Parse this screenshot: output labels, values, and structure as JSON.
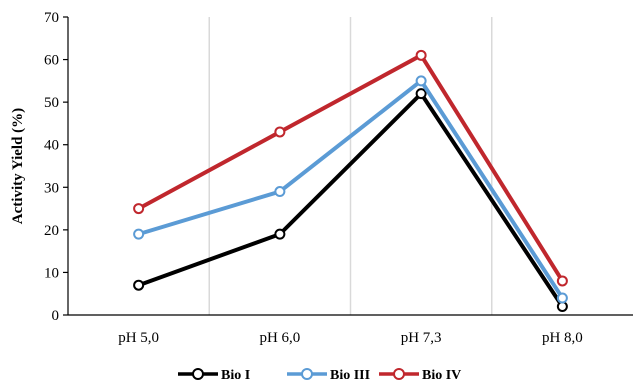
{
  "chart_data": {
    "type": "line",
    "categories": [
      "pH 5,0",
      "pH 6,0",
      "pH 7,3",
      "pH 8,0"
    ],
    "series": [
      {
        "name": "Bio I",
        "values": [
          7,
          19,
          52,
          2
        ],
        "color": "#000000"
      },
      {
        "name": "Bio III",
        "values": [
          19,
          29,
          55,
          4
        ],
        "color": "#5b9bd5"
      },
      {
        "name": "Bio IV",
        "values": [
          25,
          43,
          61,
          8
        ],
        "color": "#c0272d"
      }
    ],
    "title": "",
    "xlabel": "",
    "ylabel": "Activity Yield (%)",
    "ylim": [
      0,
      70
    ],
    "yticks": [
      0,
      10,
      20,
      30,
      40,
      50,
      60,
      70
    ],
    "grid": "vertical",
    "legend_position": "bottom"
  }
}
